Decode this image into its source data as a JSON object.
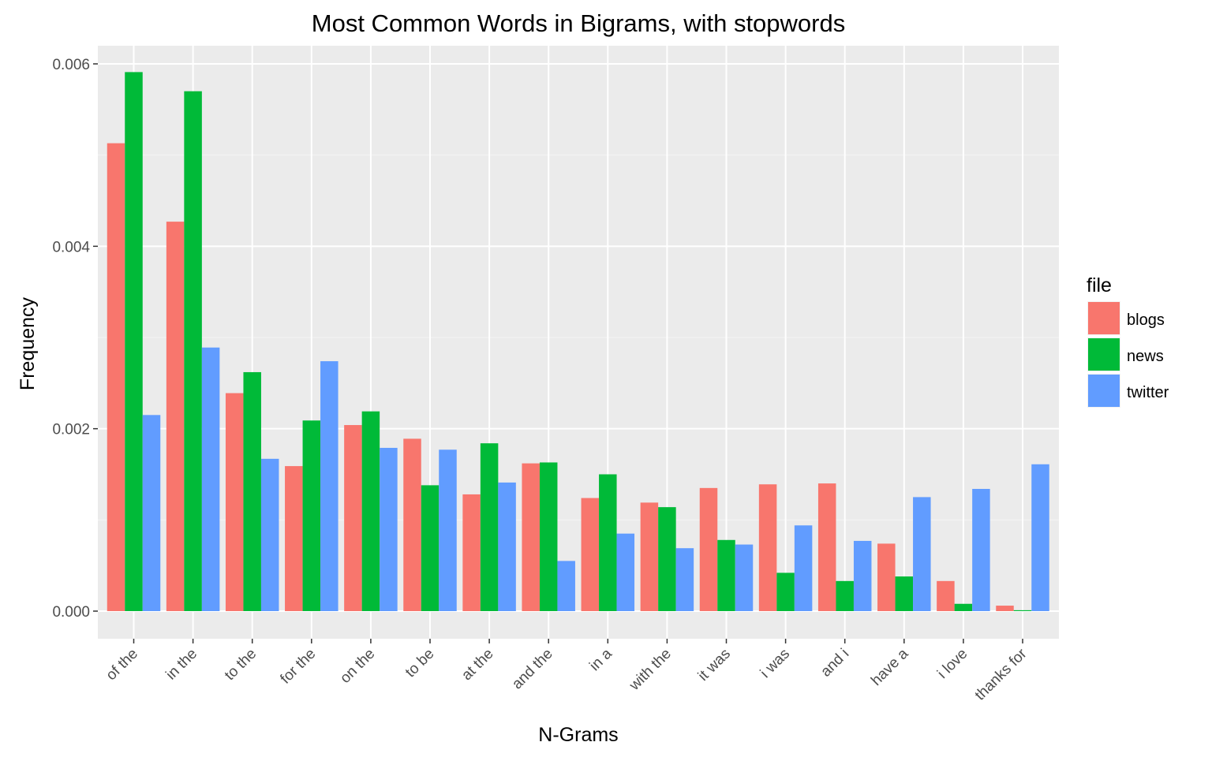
{
  "chart_data": {
    "type": "bar",
    "title": "Most Common Words in Bigrams, with stopwords",
    "xlabel": "N-Grams",
    "ylabel": "Frequency",
    "ylim": [
      0,
      0.006
    ],
    "yticks": [
      "0.000",
      "0.002",
      "0.004",
      "0.006"
    ],
    "ytick_values": [
      0,
      0.002,
      0.004,
      0.006
    ],
    "grid": true,
    "legend": {
      "title": "file",
      "position": "right"
    },
    "categories": [
      "of the",
      "in the",
      "to the",
      "for the",
      "on the",
      "to be",
      "at the",
      "and the",
      "in a",
      "with the",
      "it was",
      "i was",
      "and i",
      "have a",
      "i love",
      "thanks for"
    ],
    "series": [
      {
        "name": "blogs",
        "color": "#F8766D",
        "values": [
          0.00513,
          0.00427,
          0.00239,
          0.00159,
          0.00204,
          0.00189,
          0.00128,
          0.00162,
          0.00124,
          0.00119,
          0.00135,
          0.00139,
          0.0014,
          0.00074,
          0.00033,
          6e-05
        ]
      },
      {
        "name": "news",
        "color": "#00BA38",
        "values": [
          0.00591,
          0.0057,
          0.00262,
          0.00209,
          0.00219,
          0.00138,
          0.00184,
          0.00163,
          0.0015,
          0.00114,
          0.00078,
          0.00042,
          0.00033,
          0.00038,
          8e-05,
          1e-05
        ]
      },
      {
        "name": "twitter",
        "color": "#619CFF",
        "values": [
          0.00215,
          0.00289,
          0.00167,
          0.00274,
          0.00179,
          0.00177,
          0.00141,
          0.00055,
          0.00085,
          0.00069,
          0.00073,
          0.00094,
          0.00077,
          0.00125,
          0.00134,
          0.00161
        ]
      }
    ]
  }
}
